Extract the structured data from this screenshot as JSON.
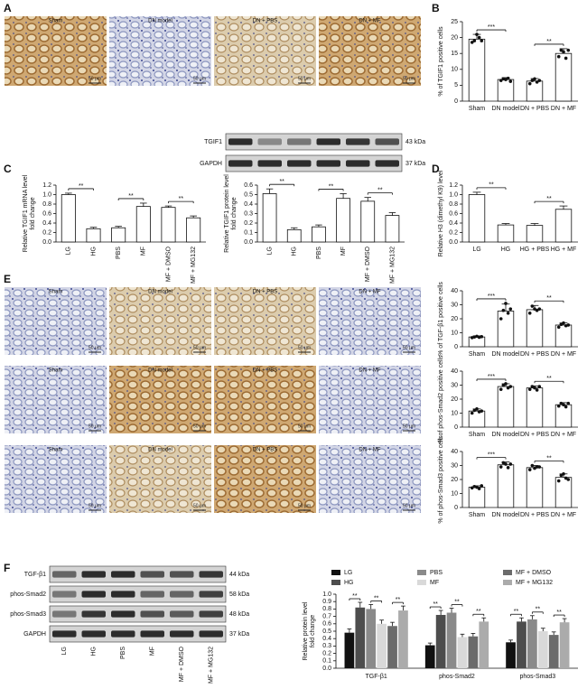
{
  "panel_letters": [
    "A",
    "B",
    "C",
    "D",
    "E",
    "F"
  ],
  "micrographs": {
    "labels": [
      "Sham",
      "DN model",
      "DN + PBS",
      "DN + MF"
    ],
    "scale_bar": "50 μm"
  },
  "blot_c": {
    "rows": [
      {
        "name": "TGIF1",
        "size": "43 kDa"
      },
      {
        "name": "GAPDH",
        "size": "37 kDa"
      }
    ]
  },
  "blot_f": {
    "rows": [
      {
        "name": "TGF-β1",
        "size": "44 kDa"
      },
      {
        "name": "phos-Smad2",
        "size": "58 kDa"
      },
      {
        "name": "phos-Smad3",
        "size": "48 kDa"
      },
      {
        "name": "GAPDH",
        "size": "37 kDa"
      }
    ],
    "lanes": [
      "LG",
      "HG",
      "PBS",
      "MF",
      "MF + DMSO",
      "MF + MG132"
    ]
  },
  "chart_data": [
    {
      "type": "bar",
      "ylabel": [
        "% of TGIF1 positive cells"
      ],
      "categories": [
        "Sham",
        "DN model",
        "DN + PBS",
        "DN + MF"
      ],
      "values": [
        19.5,
        6.8,
        6.3,
        15
      ],
      "errors": [
        1.5,
        0.6,
        0.8,
        1.5
      ],
      "points": [
        [
          18.5,
          19,
          21,
          20,
          19
        ],
        [
          6.5,
          7,
          6.8,
          7.2,
          6.2
        ],
        [
          5.5,
          6.5,
          7,
          6,
          6.5
        ],
        [
          14,
          16,
          15.5,
          13.5,
          16
        ]
      ],
      "color": "#ffffff",
      "ylim": [
        0,
        25
      ],
      "yticks": [
        0,
        5,
        10,
        15,
        20,
        25
      ],
      "significance": [
        {
          "label": "***",
          "between": [
            0,
            1
          ]
        },
        {
          "label": "**",
          "between": [
            2,
            3
          ]
        }
      ]
    },
    {
      "type": "bar",
      "ylabel": [
        "Relative TGIF1 mRNA level",
        "fold change"
      ],
      "categories": [
        "LG",
        "HG",
        "PBS",
        "MF",
        "MF + DMSO",
        "MF + MG132"
      ],
      "values": [
        1.0,
        0.28,
        0.3,
        0.75,
        0.73,
        0.51
      ],
      "errors": [
        0.03,
        0.03,
        0.03,
        0.07,
        0.03,
        0.04
      ],
      "color": "#ffffff",
      "ylim": [
        0,
        1.2
      ],
      "yticks": [
        {
          "value": 0,
          "label": "0.0"
        },
        0.2,
        0.4,
        0.6,
        0.8,
        {
          "value": 1,
          "label": "1.0"
        },
        1.2
      ],
      "significance": [
        {
          "label": "**",
          "between": [
            0,
            1
          ]
        },
        {
          "label": "**",
          "between": [
            2,
            3
          ]
        },
        {
          "label": "**",
          "between": [
            4,
            5
          ]
        }
      ]
    },
    {
      "type": "bar",
      "ylabel": [
        "Relative TGIF1 protein level",
        "fold change"
      ],
      "categories": [
        "LG",
        "HG",
        "PBS",
        "MF",
        "MF + DMSO",
        "MF + MG132"
      ],
      "values": [
        0.51,
        0.13,
        0.16,
        0.46,
        0.43,
        0.28
      ],
      "errors": [
        0.05,
        0.02,
        0.02,
        0.05,
        0.04,
        0.03
      ],
      "color": "#ffffff",
      "ylim": [
        0,
        0.6
      ],
      "yticks": [
        {
          "value": 0,
          "label": "0.0"
        },
        0.1,
        0.2,
        0.3,
        0.4,
        0.5,
        0.6
      ],
      "significance": [
        {
          "label": "**",
          "between": [
            0,
            1
          ]
        },
        {
          "label": "**",
          "between": [
            2,
            3
          ]
        },
        {
          "label": "**",
          "between": [
            4,
            5
          ]
        }
      ]
    },
    {
      "type": "bar",
      "ylabel": [
        "Relative H3 (dimethyl K9) level"
      ],
      "categories": [
        "LG",
        "HG",
        "HG + PBS",
        "HG + MF"
      ],
      "values": [
        1.0,
        0.36,
        0.35,
        0.69
      ],
      "errors": [
        0.05,
        0.03,
        0.04,
        0.07
      ],
      "color": "#ffffff",
      "ylim": [
        0,
        1.2
      ],
      "yticks": [
        {
          "value": 0,
          "label": "0.0"
        },
        0.2,
        0.4,
        0.6,
        0.8,
        {
          "value": 1,
          "label": "1.0"
        },
        1.2
      ],
      "significance": [
        {
          "label": "**",
          "between": [
            0,
            1
          ]
        },
        {
          "label": "**",
          "between": [
            2,
            3
          ]
        }
      ]
    },
    {
      "type": "bar",
      "ylabel": [
        "% of TGF-β1 positive cells"
      ],
      "categories": [
        "Sham",
        "DN model",
        "DN + PBS",
        "DN + MF"
      ],
      "values": [
        7,
        25.5,
        26.5,
        15.5
      ],
      "errors": [
        0.8,
        5,
        3,
        1.5
      ],
      "points": [
        [
          6.5,
          7,
          7.5,
          6.8,
          7.2
        ],
        [
          20,
          26,
          31,
          24,
          27
        ],
        [
          24,
          29,
          27,
          26,
          27
        ],
        [
          14,
          16,
          17,
          15,
          15.5
        ]
      ],
      "color": "#ffffff",
      "ylim": [
        0,
        40
      ],
      "yticks": [
        0,
        10,
        20,
        30,
        40
      ],
      "significance": [
        {
          "label": "***",
          "between": [
            0,
            1
          ]
        },
        {
          "label": "**",
          "between": [
            2,
            3
          ]
        }
      ]
    },
    {
      "type": "bar",
      "ylabel": [
        "% of phos-Smad2 positive cells"
      ],
      "categories": [
        "Sham",
        "DN model",
        "DN + PBS",
        "DN + MF"
      ],
      "values": [
        11.5,
        29,
        28,
        16
      ],
      "errors": [
        1.5,
        2,
        1.5,
        1.5
      ],
      "points": [
        [
          10,
          12,
          13,
          11,
          11.5
        ],
        [
          27,
          30,
          31,
          28,
          29
        ],
        [
          27,
          29,
          28,
          26.5,
          29
        ],
        [
          15,
          17,
          16,
          14.5,
          17
        ]
      ],
      "color": "#ffffff",
      "ylim": [
        0,
        40
      ],
      "yticks": [
        0,
        10,
        20,
        30,
        40
      ],
      "significance": [
        {
          "label": "***",
          "between": [
            0,
            1
          ]
        },
        {
          "label": "**",
          "between": [
            2,
            3
          ]
        }
      ]
    },
    {
      "type": "bar",
      "ylabel": [
        "% of phos-Smad3 positive cells"
      ],
      "categories": [
        "Sham",
        "DN model",
        "DN + PBS",
        "DN + MF"
      ],
      "values": [
        14.5,
        30.5,
        28.5,
        21.5
      ],
      "errors": [
        1,
        2,
        1.5,
        2.5
      ],
      "points": [
        [
          14,
          15,
          14.5,
          13.5,
          15.5
        ],
        [
          29,
          32,
          31,
          28.5,
          31
        ],
        [
          27,
          30,
          28,
          29,
          29
        ],
        [
          19,
          23,
          24,
          21,
          20
        ]
      ],
      "color": "#ffffff",
      "ylim": [
        0,
        40
      ],
      "yticks": [
        0,
        10,
        20,
        30,
        40
      ],
      "significance": [
        {
          "label": "***",
          "between": [
            0,
            1
          ]
        },
        {
          "label": "**",
          "between": [
            2,
            3
          ]
        }
      ]
    },
    {
      "type": "grouped_bar",
      "ylabel": [
        "Relative protein level",
        "fold change"
      ],
      "categories": [
        "TGF-β1",
        "phos-Smad2",
        "phos-Smad3"
      ],
      "series": [
        {
          "name": "LG",
          "color": "#111111",
          "values": [
            0.48,
            0.31,
            0.35
          ],
          "errors": [
            0.05,
            0.03,
            0.03
          ]
        },
        {
          "name": "HG",
          "color": "#4d4d4d",
          "values": [
            0.82,
            0.72,
            0.63
          ],
          "errors": [
            0.07,
            0.06,
            0.05
          ]
        },
        {
          "name": "PBS",
          "color": "#8a8a8a",
          "values": [
            0.8,
            0.75,
            0.66
          ],
          "errors": [
            0.06,
            0.06,
            0.05
          ]
        },
        {
          "name": "MF",
          "color": "#d9d9d9",
          "values": [
            0.6,
            0.42,
            0.5
          ],
          "errors": [
            0.05,
            0.04,
            0.04
          ]
        },
        {
          "name": "MF + DMSO",
          "color": "#6b6b6b",
          "values": [
            0.57,
            0.43,
            0.45
          ],
          "errors": [
            0.05,
            0.04,
            0.04
          ]
        },
        {
          "name": "MF + MG132",
          "color": "#ababab",
          "values": [
            0.78,
            0.63,
            0.62
          ],
          "errors": [
            0.06,
            0.05,
            0.05
          ]
        }
      ],
      "ylim": [
        0,
        1
      ],
      "yticks": [
        {
          "value": 0,
          "label": "0.0"
        },
        0.1,
        0.2,
        0.3,
        0.4,
        0.5,
        0.6,
        0.7,
        0.8,
        0.9,
        {
          "value": 1,
          "label": "1.0"
        }
      ],
      "significance": [
        {
          "label": "**",
          "between": [
            0,
            1
          ]
        },
        {
          "label": "**",
          "between": [
            2,
            3
          ]
        },
        {
          "label": "**",
          "between": [
            4,
            5
          ]
        }
      ]
    }
  ]
}
